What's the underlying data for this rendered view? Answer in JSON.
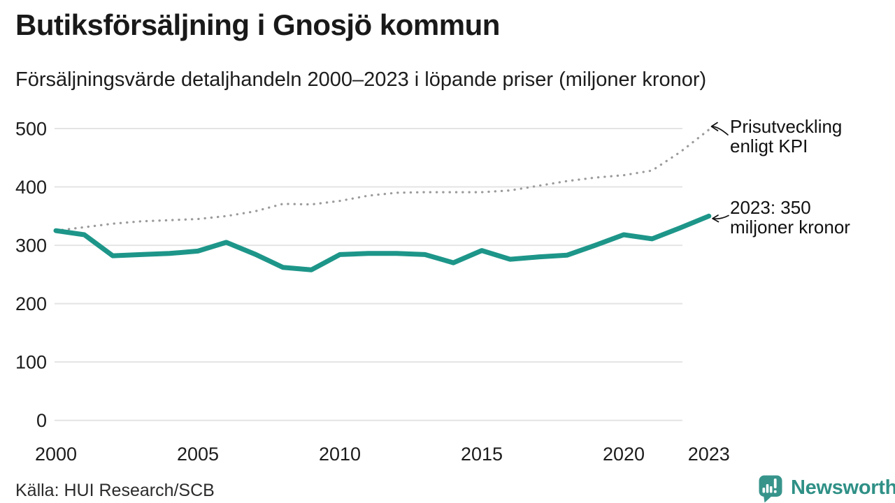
{
  "header": {
    "title": "Butiksförsäljning i Gnosjö kommun",
    "subtitle": "Försäljningsvärde detaljhandeln 2000–2023 i löpande priser (miljoner kronor)"
  },
  "annotations": {
    "kpi": {
      "line1": "Prisutveckling",
      "line2": "enligt KPI"
    },
    "latest": {
      "line1": "2023: 350",
      "line2": "miljoner kronor"
    }
  },
  "footer": {
    "source": "Källa: HUI Research/SCB",
    "brand": "Newsworthy"
  },
  "colors": {
    "accent_teal": "#1d9689",
    "kpi_gray": "#9b9b9b",
    "grid": "#e4e4e4",
    "text_dark": "#1c1c1c",
    "brand_teal": "#37948b"
  },
  "chart_data": {
    "type": "line",
    "title": "Butiksförsäljning i Gnosjö kommun",
    "subtitle": "Försäljningsvärde detaljhandeln 2000–2023 i löpande priser (miljoner kronor)",
    "xlabel": "",
    "ylabel": "miljoner kronor",
    "ylim": [
      0,
      500
    ],
    "grid": "horizontal",
    "legend": "inline-annotations",
    "x": [
      2000,
      2001,
      2002,
      2003,
      2004,
      2005,
      2006,
      2007,
      2008,
      2009,
      2010,
      2011,
      2012,
      2013,
      2014,
      2015,
      2016,
      2017,
      2018,
      2019,
      2020,
      2021,
      2022,
      2023
    ],
    "series": [
      {
        "name": "Försäljningsvärde i löpande priser",
        "style": "solid",
        "color": "#1d9689",
        "values": [
          325,
          318,
          282,
          284,
          286,
          290,
          305,
          285,
          262,
          258,
          284,
          286,
          286,
          284,
          270,
          291,
          276,
          280,
          283,
          300,
          318,
          311,
          330,
          350
        ]
      },
      {
        "name": "Prisutveckling enligt KPI",
        "style": "dotted",
        "color": "#9b9b9b",
        "values": [
          325,
          331,
          337,
          341,
          343,
          345,
          350,
          358,
          371,
          370,
          376,
          385,
          390,
          391,
          391,
          391,
          394,
          402,
          410,
          416,
          420,
          428,
          460,
          498
        ]
      }
    ],
    "yticks": [
      0,
      100,
      200,
      300,
      400,
      500
    ],
    "xticks": [
      2000,
      2005,
      2010,
      2015,
      2020,
      2023
    ],
    "latest_label": "2023: 350 miljoner kronor"
  }
}
